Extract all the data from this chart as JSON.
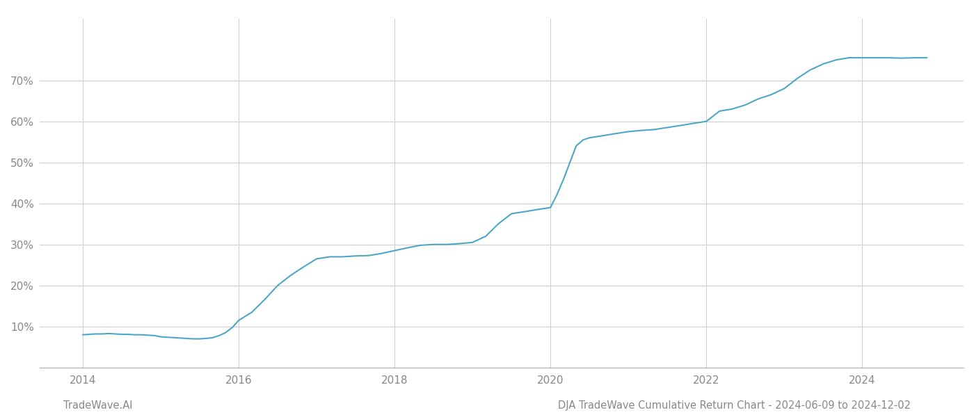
{
  "footer_left": "TradeWave.AI",
  "footer_right": "DJA TradeWave Cumulative Return Chart - 2024-06-09 to 2024-12-02",
  "line_color": "#4da6c8",
  "background_color": "#ffffff",
  "grid_color": "#cccccc",
  "x_data": [
    2014.0,
    2014.08,
    2014.17,
    2014.25,
    2014.33,
    2014.42,
    2014.5,
    2014.58,
    2014.67,
    2014.75,
    2014.83,
    2014.92,
    2015.0,
    2015.08,
    2015.17,
    2015.25,
    2015.33,
    2015.42,
    2015.5,
    2015.58,
    2015.67,
    2015.75,
    2015.83,
    2015.92,
    2016.0,
    2016.17,
    2016.33,
    2016.5,
    2016.67,
    2016.83,
    2017.0,
    2017.17,
    2017.33,
    2017.5,
    2017.67,
    2017.83,
    2018.0,
    2018.17,
    2018.33,
    2018.5,
    2018.67,
    2018.83,
    2019.0,
    2019.17,
    2019.33,
    2019.5,
    2019.67,
    2019.83,
    2020.0,
    2020.08,
    2020.17,
    2020.25,
    2020.33,
    2020.42,
    2020.5,
    2020.67,
    2020.83,
    2021.0,
    2021.17,
    2021.33,
    2021.5,
    2021.67,
    2021.83,
    2022.0,
    2022.17,
    2022.33,
    2022.5,
    2022.67,
    2022.83,
    2023.0,
    2023.17,
    2023.33,
    2023.5,
    2023.67,
    2023.83,
    2024.0,
    2024.17,
    2024.33,
    2024.5,
    2024.67,
    2024.83
  ],
  "y_data": [
    8.0,
    8.1,
    8.2,
    8.2,
    8.3,
    8.2,
    8.1,
    8.1,
    8.0,
    8.0,
    7.9,
    7.8,
    7.5,
    7.4,
    7.3,
    7.2,
    7.1,
    7.0,
    7.0,
    7.1,
    7.3,
    7.8,
    8.5,
    9.8,
    11.5,
    13.5,
    16.5,
    20.0,
    22.5,
    24.5,
    26.5,
    27.0,
    27.0,
    27.2,
    27.3,
    27.8,
    28.5,
    29.2,
    29.8,
    30.0,
    30.0,
    30.2,
    30.5,
    32.0,
    35.0,
    37.5,
    38.0,
    38.5,
    39.0,
    42.0,
    46.0,
    50.0,
    54.0,
    55.5,
    56.0,
    56.5,
    57.0,
    57.5,
    57.8,
    58.0,
    58.5,
    59.0,
    59.5,
    60.0,
    62.5,
    63.0,
    64.0,
    65.5,
    66.5,
    68.0,
    70.5,
    72.5,
    74.0,
    75.0,
    75.5,
    75.5,
    75.5,
    75.5,
    75.4,
    75.5,
    75.5
  ],
  "ylim": [
    0,
    85
  ],
  "xlim": [
    2013.45,
    2025.3
  ],
  "yticks": [
    10,
    20,
    30,
    40,
    50,
    60,
    70
  ],
  "xticks": [
    2014,
    2016,
    2018,
    2020,
    2022,
    2024
  ],
  "line_width": 1.5,
  "footer_fontsize": 10.5,
  "tick_fontsize": 11,
  "tick_color": "#888888",
  "spine_color": "#aaaaaa"
}
